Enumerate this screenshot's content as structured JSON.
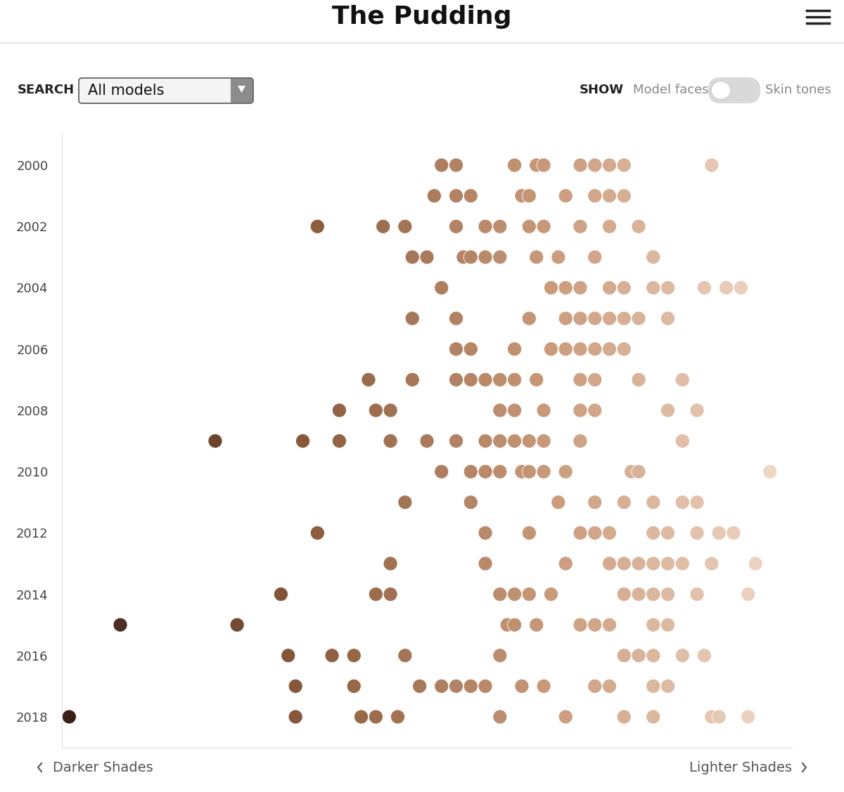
{
  "page": {
    "header": "The Pudding",
    "search_label": "SEARCH",
    "search_value": "All models",
    "show_label": "SHOW",
    "toggle_left": "Model faces",
    "toggle_right": "Skin tones"
  },
  "chart_data": {
    "type": "scatter",
    "x": [
      52,
      54,
      62,
      65,
      66,
      71,
      73,
      75,
      77,
      89,
      51,
      54,
      56,
      63,
      64,
      69,
      73,
      75,
      77,
      35,
      44,
      47,
      54,
      58,
      60,
      64,
      66,
      71,
      75,
      79,
      48,
      50,
      55,
      56,
      58,
      60,
      65,
      68,
      73,
      81,
      52,
      67,
      69,
      71,
      75,
      77,
      81,
      83,
      88,
      91,
      93,
      48,
      54,
      64,
      69,
      71,
      73,
      75,
      77,
      79,
      83,
      54,
      56,
      62,
      67,
      69,
      71,
      73,
      75,
      77,
      42,
      48,
      54,
      56,
      58,
      60,
      62,
      65,
      71,
      73,
      79,
      85,
      38,
      43,
      45,
      60,
      62,
      66,
      71,
      73,
      83,
      87,
      21,
      33,
      38,
      45,
      50,
      54,
      58,
      60,
      62,
      64,
      66,
      71,
      85,
      52,
      56,
      58,
      60,
      63,
      64,
      66,
      69,
      78,
      79,
      97,
      47,
      56,
      68,
      73,
      77,
      81,
      85,
      87,
      35,
      58,
      64,
      71,
      73,
      75,
      81,
      83,
      87,
      90,
      92,
      45,
      58,
      69,
      75,
      77,
      79,
      81,
      83,
      85,
      89,
      95,
      30,
      43,
      45,
      60,
      62,
      64,
      67,
      77,
      79,
      81,
      83,
      87,
      94,
      8,
      24,
      61,
      62,
      65,
      71,
      73,
      75,
      81,
      83,
      31,
      37,
      40,
      47,
      60,
      77,
      79,
      81,
      85,
      88,
      32,
      40,
      49,
      52,
      54,
      56,
      58,
      63,
      66,
      73,
      75,
      81,
      83,
      1,
      32,
      41,
      43,
      46,
      60,
      69,
      77,
      81,
      89,
      90,
      94
    ],
    "values": [
      2000,
      2000,
      2000,
      2000,
      2000,
      2000,
      2000,
      2000,
      2000,
      2000,
      2001,
      2001,
      2001,
      2001,
      2001,
      2001,
      2001,
      2001,
      2001,
      2002,
      2002,
      2002,
      2002,
      2002,
      2002,
      2002,
      2002,
      2002,
      2002,
      2002,
      2003,
      2003,
      2003,
      2003,
      2003,
      2003,
      2003,
      2003,
      2003,
      2003,
      2004,
      2004,
      2004,
      2004,
      2004,
      2004,
      2004,
      2004,
      2004,
      2004,
      2004,
      2005,
      2005,
      2005,
      2005,
      2005,
      2005,
      2005,
      2005,
      2005,
      2005,
      2006,
      2006,
      2006,
      2006,
      2006,
      2006,
      2006,
      2006,
      2006,
      2007,
      2007,
      2007,
      2007,
      2007,
      2007,
      2007,
      2007,
      2007,
      2007,
      2007,
      2007,
      2008,
      2008,
      2008,
      2008,
      2008,
      2008,
      2008,
      2008,
      2008,
      2008,
      2009,
      2009,
      2009,
      2009,
      2009,
      2009,
      2009,
      2009,
      2009,
      2009,
      2009,
      2009,
      2009,
      2010,
      2010,
      2010,
      2010,
      2010,
      2010,
      2010,
      2010,
      2010,
      2010,
      2010,
      2011,
      2011,
      2011,
      2011,
      2011,
      2011,
      2011,
      2011,
      2012,
      2012,
      2012,
      2012,
      2012,
      2012,
      2012,
      2012,
      2012,
      2012,
      2012,
      2013,
      2013,
      2013,
      2013,
      2013,
      2013,
      2013,
      2013,
      2013,
      2013,
      2013,
      2014,
      2014,
      2014,
      2014,
      2014,
      2014,
      2014,
      2014,
      2014,
      2014,
      2014,
      2014,
      2014,
      2015,
      2015,
      2015,
      2015,
      2015,
      2015,
      2015,
      2015,
      2015,
      2015,
      2016,
      2016,
      2016,
      2016,
      2016,
      2016,
      2016,
      2016,
      2016,
      2016,
      2017,
      2017,
      2017,
      2017,
      2017,
      2017,
      2017,
      2017,
      2017,
      2017,
      2017,
      2017,
      2017,
      2018,
      2018,
      2018,
      2018,
      2018,
      2018,
      2018,
      2018,
      2018,
      2018,
      2018,
      2018
    ],
    "xlim": [
      0,
      100
    ],
    "ylim": [
      2019,
      1999
    ],
    "yticks": [
      2000,
      2002,
      2004,
      2006,
      2008,
      2010,
      2012,
      2014,
      2016,
      2018
    ],
    "tick_labels": "y",
    "x_left_label": "Darker Shades",
    "x_right_label": "Lighter Shades"
  }
}
